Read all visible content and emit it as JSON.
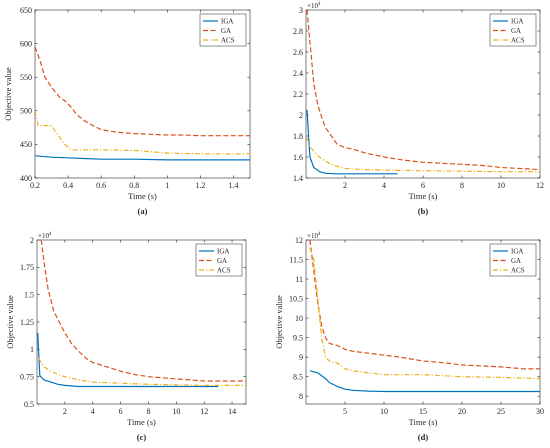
{
  "chart_data": [
    {
      "type": "line",
      "caption": "(a)",
      "xlabel": "Time (s)",
      "xlabel_unit": "s",
      "ylabel": "Objective value",
      "xlim": [
        0.2,
        1.5
      ],
      "ylim": [
        400,
        650
      ],
      "xticks": [
        0.2,
        0.4,
        0.6,
        0.8,
        1,
        1.2,
        1.4
      ],
      "xtick_labels": [
        "0.2",
        "0.4",
        "0.6",
        "0.8",
        "1",
        "1.2",
        "1.4"
      ],
      "yticks": [
        400,
        450,
        500,
        550,
        600,
        650
      ],
      "ytick_labels": [
        "400",
        "450",
        "500",
        "550",
        "600",
        "650"
      ],
      "exponent": "",
      "legend": "top-right",
      "grid": false,
      "series": [
        {
          "name": "IGA",
          "color": "#0072bd",
          "dash": "solid",
          "x": [
            0.2,
            0.3,
            0.4,
            0.5,
            0.6,
            0.8,
            1.0,
            1.2,
            1.5
          ],
          "y": [
            433,
            431,
            430,
            429,
            428,
            428,
            427,
            427,
            427
          ]
        },
        {
          "name": "GA",
          "color": "#d95319",
          "dash": "dashed",
          "x": [
            0.2,
            0.23,
            0.26,
            0.3,
            0.35,
            0.38,
            0.42,
            0.45,
            0.5,
            0.55,
            0.6,
            0.7,
            0.8,
            0.9,
            1.0,
            1.1,
            1.2,
            1.3,
            1.5
          ],
          "y": [
            595,
            575,
            550,
            535,
            520,
            515,
            505,
            495,
            485,
            478,
            472,
            468,
            466,
            465,
            464,
            464,
            463,
            463,
            463
          ]
        },
        {
          "name": "ACS",
          "color": "#edb120",
          "dash": "dashdot",
          "x": [
            0.2,
            0.22,
            0.3,
            0.35,
            0.38,
            0.42,
            0.6,
            0.8,
            1.0,
            1.2,
            1.5
          ],
          "y": [
            500,
            478,
            478,
            460,
            450,
            442,
            442,
            441,
            437,
            436,
            436
          ]
        }
      ]
    },
    {
      "type": "line",
      "caption": "(b)",
      "xlabel": "Time (s)",
      "xlabel_unit": "s",
      "ylabel": "",
      "xlim": [
        0,
        12
      ],
      "ylim": [
        1.4,
        3.0
      ],
      "xticks": [
        2,
        4,
        6,
        8,
        10,
        12
      ],
      "xtick_labels": [
        "2",
        "4",
        "6",
        "8",
        "10",
        "12"
      ],
      "yticks": [
        1.4,
        1.6,
        1.8,
        2,
        2.2,
        2.4,
        2.6,
        2.8,
        3
      ],
      "ytick_labels": [
        "1.4",
        "1.6",
        "1.8",
        "2",
        "2.2",
        "2.4",
        "2.6",
        "2.8",
        "3"
      ],
      "exponent": "×10",
      "exponent_power": "4",
      "legend": "top-right",
      "grid": false,
      "series": [
        {
          "name": "IGA",
          "color": "#0072bd",
          "dash": "solid",
          "x": [
            0.05,
            0.2,
            0.4,
            0.7,
            1.0,
            1.5,
            2.0,
            3.0,
            4.0,
            4.7
          ],
          "y": [
            2.05,
            1.6,
            1.5,
            1.46,
            1.445,
            1.44,
            1.44,
            1.44,
            1.44,
            1.44
          ]
        },
        {
          "name": "GA",
          "color": "#d95319",
          "dash": "dashed",
          "x": [
            0.05,
            0.2,
            0.4,
            0.6,
            0.8,
            1.0,
            1.3,
            1.6,
            2.0,
            2.5,
            3.0,
            3.5,
            4.0,
            5.0,
            6.0,
            7.0,
            8.0,
            9.0,
            10.0,
            11.0,
            12.0
          ],
          "y": [
            3.0,
            2.7,
            2.3,
            2.1,
            1.98,
            1.88,
            1.8,
            1.72,
            1.69,
            1.67,
            1.64,
            1.62,
            1.6,
            1.57,
            1.55,
            1.54,
            1.53,
            1.52,
            1.5,
            1.49,
            1.48
          ]
        },
        {
          "name": "ACS",
          "color": "#edb120",
          "dash": "dashdot",
          "x": [
            0.05,
            0.2,
            0.5,
            0.8,
            1.2,
            1.6,
            2.0,
            3.0,
            4.0,
            6.0,
            8.0,
            10.0,
            12.0
          ],
          "y": [
            1.78,
            1.7,
            1.63,
            1.58,
            1.54,
            1.51,
            1.49,
            1.48,
            1.475,
            1.47,
            1.465,
            1.46,
            1.46
          ]
        }
      ]
    },
    {
      "type": "line",
      "caption": "(c)",
      "xlabel": "Time (s)",
      "xlabel_unit": "s",
      "ylabel": "Objective value",
      "xlim": [
        0,
        15
      ],
      "ylim": [
        0.5,
        2.0
      ],
      "xticks": [
        2,
        4,
        6,
        8,
        10,
        12,
        14
      ],
      "xtick_labels": [
        "2",
        "4",
        "6",
        "8",
        "10",
        "12",
        "14"
      ],
      "yticks": [
        0.5,
        0.75,
        1,
        1.25,
        1.5,
        1.75,
        2
      ],
      "ytick_labels": [
        "0.5",
        "0.75",
        "1",
        "1.25",
        "1.5",
        "1.75",
        "2"
      ],
      "exponent": "×10",
      "exponent_power": "4",
      "legend": "top-right",
      "grid": false,
      "series": [
        {
          "name": "IGA",
          "color": "#0072bd",
          "dash": "solid",
          "x": [
            0.05,
            0.2,
            0.5,
            1.0,
            1.5,
            2.0,
            3.0,
            4.0,
            6.0,
            8.0,
            10.0,
            13.0
          ],
          "y": [
            1.15,
            0.76,
            0.72,
            0.7,
            0.68,
            0.67,
            0.66,
            0.66,
            0.66,
            0.66,
            0.66,
            0.66
          ]
        },
        {
          "name": "GA",
          "color": "#d95319",
          "dash": "dashed",
          "x": [
            0.3,
            0.5,
            0.8,
            1.2,
            1.6,
            2.0,
            2.5,
            3.0,
            3.5,
            4.0,
            5.0,
            6.0,
            7.0,
            8.0,
            9.0,
            10.0,
            11.0,
            12.0,
            13.0,
            14.0,
            15.0
          ],
          "y": [
            2.0,
            1.8,
            1.55,
            1.35,
            1.25,
            1.15,
            1.05,
            0.98,
            0.92,
            0.88,
            0.84,
            0.8,
            0.77,
            0.75,
            0.74,
            0.73,
            0.72,
            0.71,
            0.71,
            0.71,
            0.71
          ]
        },
        {
          "name": "ACS",
          "color": "#edb120",
          "dash": "dashdot",
          "x": [
            0.1,
            0.5,
            1.0,
            1.5,
            2.0,
            3.0,
            4.0,
            6.0,
            8.0,
            10.0,
            12.0,
            15.0
          ],
          "y": [
            0.92,
            0.84,
            0.8,
            0.77,
            0.75,
            0.72,
            0.7,
            0.69,
            0.68,
            0.675,
            0.67,
            0.67
          ]
        }
      ]
    },
    {
      "type": "line",
      "caption": "(d)",
      "xlabel": "Time (s)",
      "xlabel_unit": "s",
      "ylabel": "Objective value",
      "xlim": [
        0,
        30
      ],
      "ylim": [
        7.8,
        12.0
      ],
      "xticks": [
        5,
        10,
        15,
        20,
        25,
        30
      ],
      "xtick_labels": [
        "5",
        "10",
        "15",
        "20",
        "25",
        "30"
      ],
      "yticks": [
        8,
        8.5,
        9,
        9.5,
        10,
        10.5,
        11,
        11.5,
        12
      ],
      "ytick_labels": [
        "8",
        "8.5",
        "9",
        "9.5",
        "10",
        "10.5",
        "11",
        "11.5",
        "12"
      ],
      "exponent": "×10",
      "exponent_power": "4",
      "legend": "top-right",
      "grid": false,
      "series": [
        {
          "name": "IGA",
          "color": "#0072bd",
          "dash": "solid",
          "x": [
            0.5,
            1.5,
            2.5,
            3.0,
            4.0,
            5.0,
            6.0,
            8.0,
            10.0,
            15.0,
            20.0,
            30.0
          ],
          "y": [
            8.65,
            8.6,
            8.45,
            8.35,
            8.25,
            8.18,
            8.15,
            8.13,
            8.12,
            8.12,
            8.12,
            8.12
          ]
        },
        {
          "name": "GA",
          "color": "#d95319",
          "dash": "dashed",
          "x": [
            0.5,
            1.0,
            1.5,
            2.0,
            2.5,
            3.0,
            4.0,
            5.0,
            6.0,
            8.0,
            10.0,
            12.0,
            15.0,
            18.0,
            20.0,
            22.0,
            25.0,
            28.0,
            30.0
          ],
          "y": [
            12.0,
            11.2,
            10.4,
            9.8,
            9.5,
            9.35,
            9.3,
            9.2,
            9.15,
            9.1,
            9.05,
            9.0,
            8.9,
            8.85,
            8.8,
            8.78,
            8.75,
            8.7,
            8.7
          ]
        },
        {
          "name": "ACS",
          "color": "#edb120",
          "dash": "dashdot",
          "x": [
            0.5,
            1.0,
            1.5,
            2.0,
            2.5,
            3.0,
            4.0,
            5.0,
            6.0,
            8.0,
            10.0,
            15.0,
            20.0,
            25.0,
            30.0
          ],
          "y": [
            11.8,
            11.5,
            10.5,
            9.5,
            9.0,
            8.9,
            8.85,
            8.7,
            8.65,
            8.6,
            8.55,
            8.55,
            8.5,
            8.48,
            8.45
          ]
        }
      ]
    }
  ]
}
